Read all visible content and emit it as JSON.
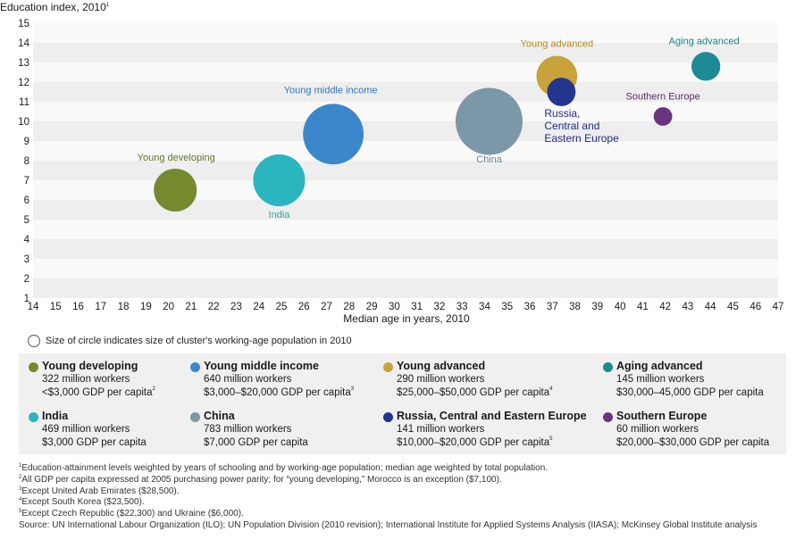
{
  "chart_data": {
    "type": "scatter",
    "title": "Education index, 2010",
    "title_footnote": "1",
    "xlabel": "Median age in years, 2010",
    "ylabel": "Education index, 2010",
    "xlim": [
      14,
      47
    ],
    "ylim": [
      1,
      15
    ],
    "xticks": [
      14,
      15,
      16,
      17,
      18,
      19,
      20,
      21,
      22,
      23,
      24,
      25,
      26,
      27,
      28,
      29,
      30,
      31,
      32,
      33,
      34,
      35,
      36,
      37,
      38,
      39,
      40,
      41,
      42,
      43,
      44,
      45,
      46,
      47
    ],
    "yticks": [
      1,
      2,
      3,
      4,
      5,
      6,
      7,
      8,
      9,
      10,
      11,
      12,
      13,
      14,
      15
    ],
    "size_note": "Size of circle indicates size of cluster's working-age population in 2010",
    "points": [
      {
        "label": "Young developing",
        "x": 20.3,
        "y": 6.5,
        "size": 322,
        "color": "#758a2f",
        "label_color": "#5f7521"
      },
      {
        "label": "India",
        "x": 24.9,
        "y": 7.0,
        "size": 469,
        "color": "#2bb5be",
        "label_color": "#2aa5ae"
      },
      {
        "label": "Young middle income",
        "x": 27.3,
        "y": 9.35,
        "size": 640,
        "color": "#3c86cc",
        "label_color": "#2f78bf"
      },
      {
        "label": "China",
        "x": 34.2,
        "y": 10.0,
        "size": 783,
        "color": "#7c97a8",
        "label_color": "#6e8797"
      },
      {
        "label": "Young advanced",
        "x": 37.2,
        "y": 12.3,
        "size": 290,
        "color": "#c8a23a",
        "label_color": "#b08d24"
      },
      {
        "label": "Russia, Central and Eastern Europe",
        "label_lines": [
          "Russia,",
          "Central and",
          "Eastern Europe"
        ],
        "x": 37.4,
        "y": 11.5,
        "size": 141,
        "color": "#24358f",
        "label_color": "#1f2f86"
      },
      {
        "label": "Southern Europe",
        "x": 41.9,
        "y": 10.25,
        "size": 60,
        "color": "#6a3380",
        "label_color": "#5a2a6e"
      },
      {
        "label": "Aging advanced",
        "x": 43.8,
        "y": 12.8,
        "size": 145,
        "color": "#1d8a95",
        "label_color": "#1b7e88"
      }
    ]
  },
  "legend": [
    {
      "name": "Young developing",
      "color": "#758a2f",
      "workers": "322 million workers",
      "gdp": "<$3,000 GDP per capita",
      "note": "2"
    },
    {
      "name": "Young middle income",
      "color": "#3c86cc",
      "workers": "640 million workers",
      "gdp": "$3,000–$20,000 GDP per capita",
      "note": "3"
    },
    {
      "name": "Young advanced",
      "color": "#c8a23a",
      "workers": "290 million workers",
      "gdp": "$25,000–$50,000 GDP per capita",
      "note": "4"
    },
    {
      "name": "Aging advanced",
      "color": "#1d8a95",
      "workers": "145 million workers",
      "gdp": "$30,000–45,000 GDP per capita",
      "note": ""
    },
    {
      "name": "India",
      "color": "#2bb5be",
      "workers": "469 million workers",
      "gdp": "$3,000 GDP per capita",
      "note": ""
    },
    {
      "name": "China",
      "color": "#7c97a8",
      "workers": "783 million workers",
      "gdp": "$7,000 GDP per capita",
      "note": ""
    },
    {
      "name": "Russia, Central and Eastern Europe",
      "color": "#24358f",
      "workers": "141 million workers",
      "gdp": "$10,000–$20,000 GDP per capita",
      "note": "5"
    },
    {
      "name": "Southern Europe",
      "color": "#6a3380",
      "workers": "60 million workers",
      "gdp": "$20,000–$30,000 GDP per capita",
      "note": ""
    }
  ],
  "footnotes": [
    {
      "num": "1",
      "text": "Education-attainment levels weighted by years of schooling and by working-age population; median age weighted by total population."
    },
    {
      "num": "2",
      "text": "All GDP per capita expressed at 2005 purchasing power parity; for “young developing,” Morocco is an exception ($7,100)."
    },
    {
      "num": "3",
      "text": "Except United Arab Emirates ($28,500)."
    },
    {
      "num": "4",
      "text": "Except South Korea ($23,500)."
    },
    {
      "num": "5",
      "text": "Except Czech Republic ($22,300) and Ukraine ($6,000)."
    }
  ],
  "source": "Source: UN International Labour Organization (ILO); UN Population Division (2010 revision); International Institute for Applied Systems Analysis (IIASA); McKinsey Global Institute analysis"
}
